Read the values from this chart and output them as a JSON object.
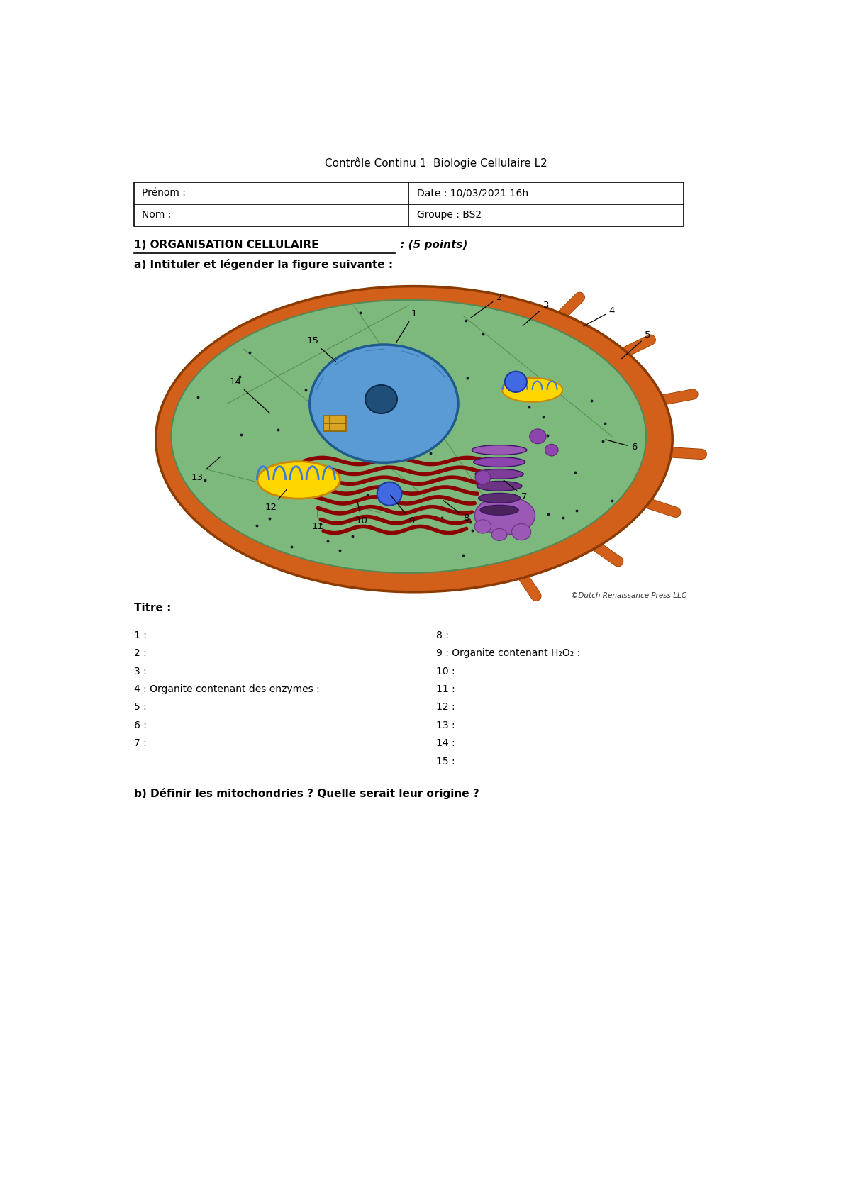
{
  "title": "Contrôle Continu 1  Biologie Cellulaire L2",
  "prenom_label": "Prénom :",
  "nom_label": "Nom :",
  "date_label": "Date : 10/03/2021 16h",
  "groupe_label": "Groupe : BS2",
  "section1_title": "1) ORGANISATION CELLULAIRE",
  "section1_points": " : (5 points)",
  "section1a": "a) Intituler et légender la figure suivante :",
  "titre_label": "Titre :",
  "labels_left": [
    "1 :",
    "2 :",
    "3 :",
    "4 : Organite contenant des enzymes :",
    "5 :",
    "6 :",
    "7 :"
  ],
  "labels_right": [
    "8 :",
    "9 : Organite contenant H₂O₂ :",
    "10 :",
    "11 :",
    "12 :",
    "13 :",
    "14 :",
    "15 :"
  ],
  "section1b": "b) Définir les mitochondries ? Quelle serait leur origine ?",
  "copyright": "©Dutch Renaissance Press LLC",
  "bg_color": "#ffffff",
  "text_color": "#000000"
}
